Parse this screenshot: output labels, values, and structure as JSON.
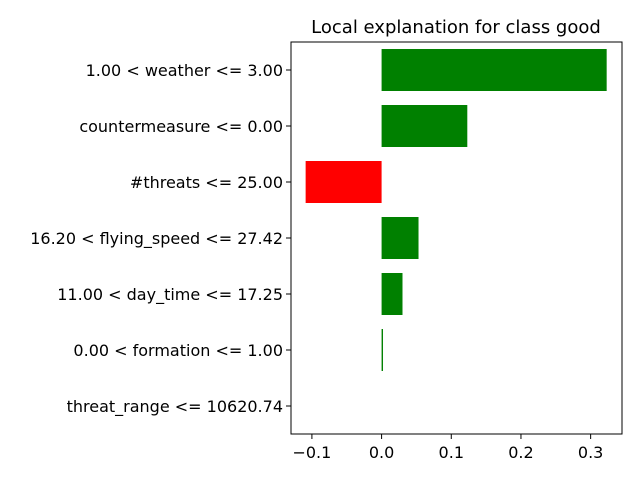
{
  "chart_data": {
    "type": "bar",
    "orientation": "horizontal",
    "title": "Local explanation for class good",
    "xlabel": "",
    "ylabel": "",
    "categories": [
      "1.00 < weather <= 3.00",
      "countermeasure <= 0.00",
      "#threats <= 25.00",
      "16.20 < flying_speed <= 27.42",
      "11.00 < day_time <= 17.25",
      "0.00 < formation <= 1.00",
      "threat_range <= 10620.74"
    ],
    "values": [
      0.323,
      0.123,
      -0.109,
      0.053,
      0.03,
      0.002,
      0.0
    ],
    "xlim": [
      -0.13,
      0.345
    ],
    "xticks": [
      -0.1,
      0.0,
      0.1,
      0.2,
      0.3
    ],
    "xtick_labels": [
      "−0.1",
      "0.0",
      "0.1",
      "0.2",
      "0.3"
    ],
    "positive_color": "#008000",
    "negative_color": "#ff0000",
    "grid": false
  }
}
